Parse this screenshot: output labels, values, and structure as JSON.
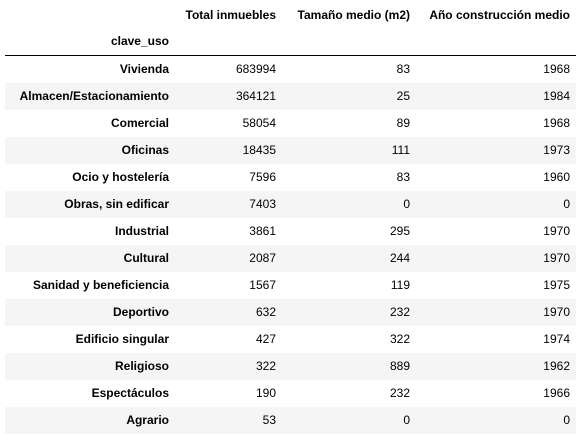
{
  "table": {
    "index_name": "clave_uso",
    "columns": [
      "Total inmuebles",
      "Tamaño medio (m2)",
      "Año construcción medio"
    ],
    "rows": [
      {
        "label": "Vivienda",
        "values": [
          "683994",
          "83",
          "1968"
        ]
      },
      {
        "label": "Almacen/Estacionamiento",
        "values": [
          "364121",
          "25",
          "1984"
        ]
      },
      {
        "label": "Comercial",
        "values": [
          "58054",
          "89",
          "1968"
        ]
      },
      {
        "label": "Oficinas",
        "values": [
          "18435",
          "111",
          "1973"
        ]
      },
      {
        "label": "Ocio y hostelería",
        "values": [
          "7596",
          "83",
          "1960"
        ]
      },
      {
        "label": "Obras, sin edificar",
        "values": [
          "7403",
          "0",
          "0"
        ]
      },
      {
        "label": "Industrial",
        "values": [
          "3861",
          "295",
          "1970"
        ]
      },
      {
        "label": "Cultural",
        "values": [
          "2087",
          "244",
          "1970"
        ]
      },
      {
        "label": "Sanidad y beneficiencia",
        "values": [
          "1567",
          "119",
          "1975"
        ]
      },
      {
        "label": "Deportivo",
        "values": [
          "632",
          "232",
          "1970"
        ]
      },
      {
        "label": "Edificio singular",
        "values": [
          "427",
          "322",
          "1974"
        ]
      },
      {
        "label": "Religioso",
        "values": [
          "322",
          "889",
          "1962"
        ]
      },
      {
        "label": "Espectáculos",
        "values": [
          "190",
          "232",
          "1966"
        ]
      },
      {
        "label": "Agrario",
        "values": [
          "53",
          "0",
          "0"
        ]
      }
    ]
  }
}
